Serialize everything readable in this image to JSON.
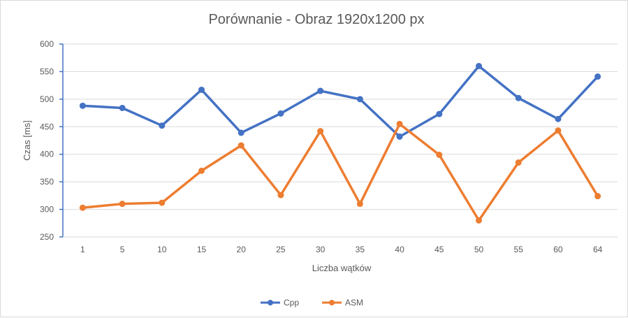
{
  "chart_data": {
    "type": "line",
    "title": "Porównanie - Obraz 1920x1200 px",
    "xlabel": "Liczba wątków",
    "ylabel": "Czas [ms]",
    "categories": [
      "1",
      "5",
      "10",
      "15",
      "20",
      "25",
      "30",
      "35",
      "40",
      "45",
      "50",
      "55",
      "60",
      "64"
    ],
    "ylim": [
      250,
      600
    ],
    "yticks": [
      250,
      300,
      350,
      400,
      450,
      500,
      550,
      600
    ],
    "grid": true,
    "legend": "bottom",
    "series": [
      {
        "name": "Cpp",
        "color": "#4472c4",
        "values": [
          488,
          484,
          452,
          517,
          439,
          474,
          515,
          500,
          432,
          473,
          560,
          502,
          464,
          541
        ]
      },
      {
        "name": "ASM",
        "color": "#ed7d31",
        "values": [
          303,
          310,
          312,
          370,
          416,
          326,
          442,
          310,
          455,
          399,
          280,
          385,
          443,
          324
        ]
      }
    ]
  }
}
